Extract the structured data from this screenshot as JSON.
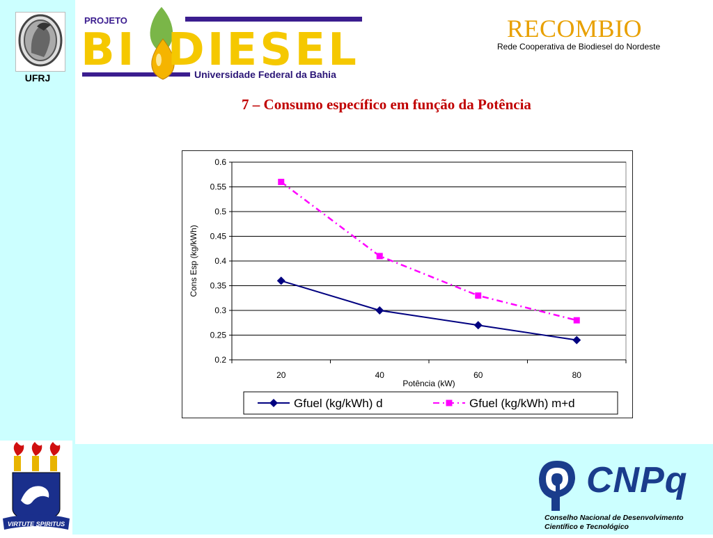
{
  "header": {
    "ufrj_label": "UFRJ",
    "biodiesel": {
      "projeto": "PROJETO",
      "word": "BIODIESEL",
      "university": "Universidade Federal da Bahia"
    },
    "recombio": {
      "name": "RECOMBIO",
      "subtitle": "Rede Cooperativa de Biodiesel do Nordeste"
    }
  },
  "page_title": "7 – Consumo específico em função da Potência",
  "footer": {
    "crest_motto": "VIRTUTE SPIRITUS",
    "cnpq": {
      "name": "CNPq",
      "line1": "Conselho Nacional de Desenvolvimento",
      "line2": "Científico e Tecnológico"
    }
  },
  "chart_data": {
    "type": "line",
    "x": [
      20,
      40,
      60,
      80
    ],
    "series": [
      {
        "name": "Gfuel (kg/kWh) d",
        "values": [
          0.36,
          0.3,
          0.27,
          0.24
        ],
        "color": "#000080",
        "marker": "diamond",
        "dash": "solid"
      },
      {
        "name": "Gfuel (kg/kWh) m+d",
        "values": [
          0.56,
          0.41,
          0.33,
          0.28
        ],
        "color": "#ff00ff",
        "marker": "square",
        "dash": "dash-dot"
      }
    ],
    "xlabel": "Potência (kW)",
    "ylabel": "Cons Esp (kg/kWh)",
    "ylim": [
      0.2,
      0.6
    ],
    "yticks": [
      "0.2",
      "0.25",
      "0.3",
      "0.35",
      "0.4",
      "0.45",
      "0.5",
      "0.55",
      "0.6"
    ],
    "xtick_labels": [
      "20",
      "40",
      "60",
      "80"
    ],
    "grid": true,
    "legend": "bottom"
  }
}
